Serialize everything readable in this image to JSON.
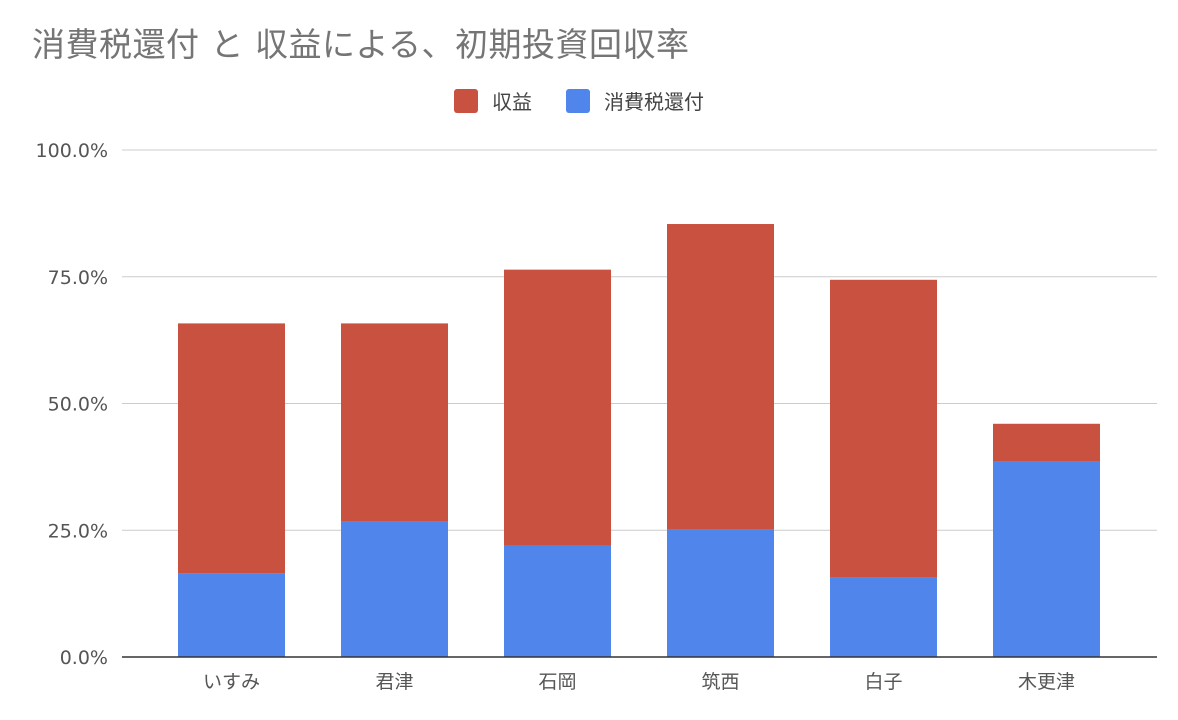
{
  "chart_data": {
    "type": "bar",
    "stacked": true,
    "title": "消費税還付 と 収益による、初期投資回収率",
    "xlabel": "",
    "ylabel": "",
    "categories": [
      "いすみ",
      "君津",
      "石岡",
      "筑西",
      "白子",
      "木更津"
    ],
    "series": [
      {
        "name": "消費税還付",
        "color": "#5085ec",
        "values": [
          16.5,
          26.7,
          22.0,
          25.1,
          15.7,
          38.5
        ]
      },
      {
        "name": "収益",
        "color": "#c9513f",
        "values": [
          49.3,
          39.1,
          54.4,
          60.3,
          58.7,
          7.5
        ]
      }
    ],
    "legend": {
      "position": "top",
      "order": [
        "収益",
        "消費税還付"
      ]
    },
    "ylim": [
      0,
      100
    ],
    "yticks": [
      "0.0%",
      "25.0%",
      "50.0%",
      "75.0%",
      "100.0%"
    ],
    "grid": true
  }
}
